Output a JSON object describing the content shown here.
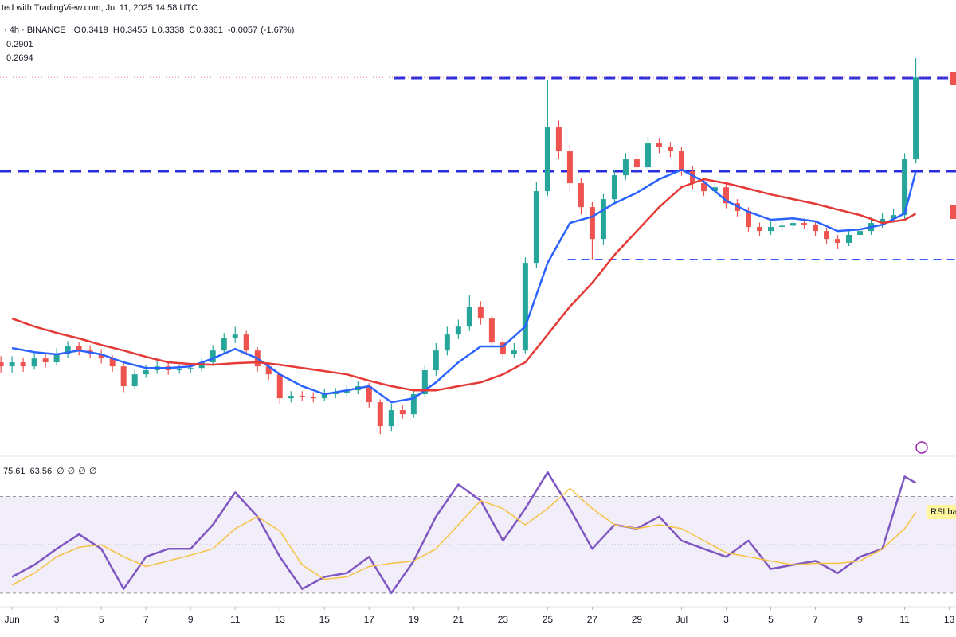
{
  "chart_data": {
    "type": "candlestick",
    "header": "ted with TradingView.com, Jul 11, 2025 14:58 UTC",
    "symbol_info": "· 4h · BINANCE",
    "ohlc_legend": [
      {
        "label": "O",
        "value": 0.3419
      },
      {
        "label": "H",
        "value": 0.3455
      },
      {
        "label": "L",
        "value": 0.3338
      },
      {
        "label": "C",
        "value": 0.3361
      }
    ],
    "change": -0.0057,
    "change_pct": {
      "value": -1.67,
      "label": "(-1.67%)"
    },
    "up_color": "#26a69a",
    "down_color": "#ef5350",
    "xlim": [
      0.46,
      43.3
    ],
    "ylim": [
      0.151,
      0.374
    ],
    "xticks": [
      {
        "value": 1,
        "label": "Jun"
      },
      3,
      5,
      7,
      9,
      11,
      13,
      15,
      17,
      19,
      21,
      23,
      25,
      27,
      29,
      {
        "value": 31,
        "label": "Jul"
      },
      {
        "value": 33,
        "label": "3"
      },
      {
        "value": 35,
        "label": "5"
      },
      {
        "value": 37,
        "label": "7"
      },
      {
        "value": 39,
        "label": "9"
      },
      {
        "value": 41,
        "label": "11"
      },
      {
        "value": 43,
        "label": "13"
      }
    ],
    "x": [
      0.5,
      1,
      1.5,
      2,
      2.5,
      3,
      3.5,
      4,
      4.5,
      5,
      5.5,
      6,
      6.5,
      7,
      7.5,
      8,
      8.5,
      9,
      9.5,
      10,
      10.5,
      11,
      11.5,
      12,
      12.5,
      13,
      13.5,
      14,
      14.5,
      15,
      15.5,
      16,
      16.5,
      17,
      17.5,
      18,
      18.5,
      19,
      19.5,
      20,
      20.5,
      21,
      21.5,
      22,
      22.5,
      23,
      23.5,
      24,
      24.5,
      25,
      25.5,
      26,
      26.5,
      27,
      27.5,
      28,
      28.5,
      29,
      29.5,
      30,
      30.5,
      31,
      31.5,
      32,
      32.5,
      33,
      33.5,
      34,
      34.5,
      35,
      35.5,
      36,
      36.5,
      37,
      37.5,
      38,
      38.5,
      39,
      39.5,
      40,
      40.5,
      41,
      41.5
    ],
    "open": [
      0.1966,
      0.1946,
      0.1966,
      0.1946,
      0.1985,
      0.1966,
      0.2005,
      0.2044,
      0.2024,
      0.2005,
      0.1985,
      0.1946,
      0.1849,
      0.1907,
      0.1927,
      0.1946,
      0.1927,
      0.1932,
      0.1938,
      0.1966,
      0.2024,
      0.2083,
      0.2102,
      0.2024,
      0.1946,
      0.1907,
      0.179,
      0.1802,
      0.1798,
      0.179,
      0.181,
      0.1816,
      0.1829,
      0.1849,
      0.1771,
      0.1654,
      0.1732,
      0.1712,
      0.181,
      0.1927,
      0.2024,
      0.2102,
      0.2141,
      0.2239,
      0.218,
      0.2063,
      0.2005,
      0.2024,
      0.2453,
      0.2804,
      0.3116,
      0.2999,
      0.2843,
      0.2726,
      0.257,
      0.2765,
      0.2882,
      0.296,
      0.2921,
      0.3038,
      0.3019,
      0.2999,
      0.2902,
      0.2843,
      0.2804,
      0.2823,
      0.2745,
      0.2707,
      0.2629,
      0.2609,
      0.2629,
      0.2635,
      0.2648,
      0.2641,
      0.2609,
      0.257,
      0.2551,
      0.259,
      0.2609,
      0.2648,
      0.2668,
      0.2687,
      0.296
    ],
    "high": [
      0.1996,
      0.1996,
      0.199,
      0.2015,
      0.201,
      0.2035,
      0.207,
      0.2066,
      0.205,
      0.203,
      0.2,
      0.196,
      0.193,
      0.1955,
      0.197,
      0.1965,
      0.1955,
      0.196,
      0.199,
      0.205,
      0.211,
      0.214,
      0.212,
      0.204,
      0.1965,
      0.192,
      0.1825,
      0.1825,
      0.182,
      0.1835,
      0.184,
      0.1855,
      0.1875,
      0.1865,
      0.1785,
      0.176,
      0.1755,
      0.1835,
      0.195,
      0.206,
      0.214,
      0.2175,
      0.2297,
      0.2265,
      0.2195,
      0.2085,
      0.206,
      0.248,
      0.285,
      0.335,
      0.315,
      0.303,
      0.287,
      0.275,
      0.279,
      0.291,
      0.299,
      0.2985,
      0.307,
      0.3065,
      0.3045,
      0.302,
      0.2925,
      0.2865,
      0.285,
      0.284,
      0.2765,
      0.2725,
      0.265,
      0.2655,
      0.266,
      0.2675,
      0.267,
      0.266,
      0.2625,
      0.259,
      0.2615,
      0.2635,
      0.2675,
      0.2695,
      0.2715,
      0.299,
      0.3455
    ],
    "low": [
      0.1916,
      0.1916,
      0.192,
      0.193,
      0.194,
      0.195,
      0.199,
      0.2,
      0.1985,
      0.196,
      0.192,
      0.182,
      0.1835,
      0.189,
      0.191,
      0.1905,
      0.191,
      0.1915,
      0.192,
      0.195,
      0.201,
      0.206,
      0.2,
      0.192,
      0.188,
      0.176,
      0.177,
      0.1775,
      0.177,
      0.1775,
      0.179,
      0.18,
      0.181,
      0.1745,
      0.1615,
      0.163,
      0.169,
      0.1695,
      0.1795,
      0.19,
      0.2,
      0.208,
      0.212,
      0.215,
      0.204,
      0.198,
      0.1985,
      0.201,
      0.243,
      0.278,
      0.296,
      0.28,
      0.269,
      0.247,
      0.254,
      0.274,
      0.286,
      0.289,
      0.29,
      0.299,
      0.297,
      0.288,
      0.2815,
      0.278,
      0.2785,
      0.272,
      0.268,
      0.2605,
      0.2585,
      0.259,
      0.261,
      0.2615,
      0.262,
      0.2585,
      0.2545,
      0.252,
      0.2535,
      0.257,
      0.259,
      0.2625,
      0.265,
      0.267,
      0.294
    ],
    "close": [
      0.1946,
      0.1966,
      0.1946,
      0.1985,
      0.1966,
      0.2005,
      0.2044,
      0.2024,
      0.2005,
      0.1985,
      0.1946,
      0.1849,
      0.1907,
      0.1927,
      0.1946,
      0.1927,
      0.1932,
      0.1938,
      0.1966,
      0.2024,
      0.2083,
      0.2102,
      0.2024,
      0.1946,
      0.1907,
      0.179,
      0.1802,
      0.1798,
      0.179,
      0.181,
      0.1816,
      0.1829,
      0.1849,
      0.1771,
      0.1654,
      0.1732,
      0.1712,
      0.181,
      0.1927,
      0.2024,
      0.2102,
      0.2141,
      0.2239,
      0.218,
      0.2063,
      0.2005,
      0.2024,
      0.2453,
      0.2804,
      0.3116,
      0.2999,
      0.2843,
      0.2726,
      0.257,
      0.2765,
      0.2882,
      0.296,
      0.2921,
      0.3038,
      0.3019,
      0.2999,
      0.2902,
      0.2843,
      0.2804,
      0.2823,
      0.2745,
      0.2707,
      0.2629,
      0.2609,
      0.2629,
      0.2635,
      0.2648,
      0.2641,
      0.2609,
      0.257,
      0.2551,
      0.259,
      0.2609,
      0.2648,
      0.2668,
      0.2687,
      0.296,
      0.3361
    ],
    "moving_averages": [
      {
        "color": "#2962ff",
        "x": [
          1,
          2,
          3,
          4,
          5,
          6,
          7,
          8,
          9,
          10,
          11,
          12,
          13,
          14,
          15,
          16,
          17,
          18,
          19,
          20,
          21,
          22,
          23,
          24,
          25,
          26,
          27,
          28,
          29,
          30,
          31,
          32,
          33,
          34,
          35,
          36,
          37,
          38,
          39,
          40,
          41,
          41.5
        ],
        "values": [
          0.2036,
          0.2016,
          0.2005,
          0.2024,
          0.2005,
          0.1966,
          0.1938,
          0.1938,
          0.1946,
          0.1985,
          0.2032,
          0.1985,
          0.1907,
          0.1849,
          0.181,
          0.1829,
          0.1849,
          0.1771,
          0.179,
          0.1868,
          0.1966,
          0.2044,
          0.2044,
          0.2141,
          0.2453,
          0.2648,
          0.2679,
          0.2745,
          0.2796,
          0.2863,
          0.2909,
          0.2851,
          0.2757,
          0.2703,
          0.2664,
          0.2671,
          0.2656,
          0.2609,
          0.2617,
          0.264,
          0.2695,
          0.2901
        ]
      },
      {
        "color": "#e53935",
        "x": [
          1,
          2,
          3,
          4,
          5,
          6,
          7,
          8,
          9,
          10,
          11,
          12,
          13,
          14,
          15,
          16,
          17,
          18,
          19,
          20,
          21,
          22,
          23,
          24,
          25,
          26,
          27,
          28,
          29,
          30,
          31,
          32,
          33,
          34,
          35,
          36,
          37,
          38,
          39,
          40,
          41,
          41.5
        ],
        "values": [
          0.218,
          0.2141,
          0.211,
          0.2083,
          0.2051,
          0.2024,
          0.1993,
          0.1966,
          0.1958,
          0.1954,
          0.1962,
          0.1966,
          0.1954,
          0.1938,
          0.1923,
          0.1907,
          0.1876,
          0.1849,
          0.1829,
          0.1829,
          0.1849,
          0.1868,
          0.1907,
          0.1966,
          0.2102,
          0.2239,
          0.2355,
          0.2492,
          0.2609,
          0.2726,
          0.2824,
          0.2863,
          0.2843,
          0.2816,
          0.2788,
          0.2765,
          0.2742,
          0.2714,
          0.2687,
          0.2648,
          0.2664,
          0.2694
        ]
      }
    ],
    "levels": [
      {
        "value": 0.3358,
        "x_start": 18.1,
        "color": "#2a2ee0",
        "weight": "heavy"
      },
      {
        "value": 0.2902,
        "x_start": 0.46,
        "color": "#2a2ee0",
        "weight": "heavy"
      },
      {
        "value": 0.2469,
        "x_start": 25.9,
        "color": "#3d5afe",
        "weight": "light"
      }
    ],
    "rsi": {
      "ylim": [
        25,
        86
      ],
      "bands": [
        70,
        50,
        30
      ],
      "icons": [
        "∅",
        "∅",
        "∅",
        "∅"
      ],
      "badge": "RSI ba",
      "x": [
        1,
        2,
        3,
        4,
        5,
        6,
        7,
        8,
        9,
        10,
        11,
        12,
        13,
        14,
        15,
        16,
        17,
        18,
        19,
        20,
        21,
        22,
        23,
        24,
        25,
        26,
        27,
        28,
        29,
        30,
        31,
        32,
        33,
        34,
        35,
        36,
        37,
        38,
        39,
        40,
        41,
        41.5
      ],
      "series": [
        {
          "color": "#7e57c2",
          "values": [
            36.7,
            41.7,
            48.3,
            54.3,
            48.3,
            31.7,
            45.0,
            48.3,
            48.3,
            58.3,
            71.7,
            61.7,
            45.0,
            31.7,
            36.7,
            38.3,
            45.0,
            30.0,
            43.3,
            61.7,
            75.0,
            68.3,
            51.7,
            65.0,
            80.0,
            65.0,
            48.3,
            58.3,
            56.7,
            61.7,
            51.7,
            48.3,
            45.0,
            51.7,
            40.0,
            41.7,
            43.3,
            38.3,
            45.0,
            48.3,
            78.3,
            75.61
          ]
        },
        {
          "color": "#f5c242",
          "values": [
            33.3,
            38.3,
            45.0,
            49.0,
            50.0,
            45.0,
            41.0,
            43.3,
            45.7,
            48.3,
            56.7,
            61.7,
            55.7,
            41.7,
            35.7,
            36.7,
            41.0,
            42.3,
            43.3,
            48.3,
            58.3,
            68.3,
            65.0,
            58.3,
            65.0,
            73.3,
            65.0,
            58.3,
            56.7,
            58.3,
            56.7,
            51.7,
            46.7,
            45.0,
            43.3,
            41.7,
            42.3,
            42.3,
            43.3,
            48.3,
            56.7,
            63.56
          ]
        }
      ]
    }
  }
}
